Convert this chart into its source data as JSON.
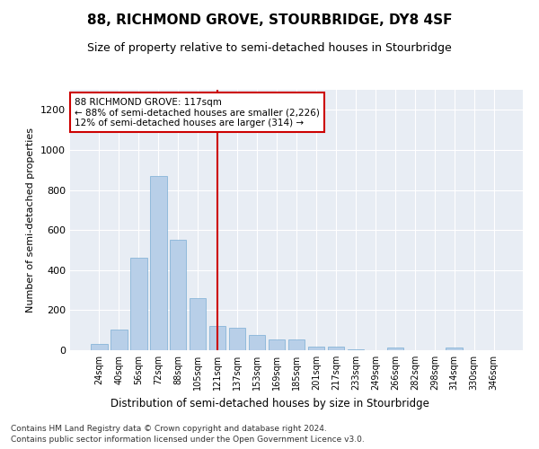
{
  "title": "88, RICHMOND GROVE, STOURBRIDGE, DY8 4SF",
  "subtitle": "Size of property relative to semi-detached houses in Stourbridge",
  "xlabel": "Distribution of semi-detached houses by size in Stourbridge",
  "ylabel": "Number of semi-detached properties",
  "categories": [
    "24sqm",
    "40sqm",
    "56sqm",
    "72sqm",
    "88sqm",
    "105sqm",
    "121sqm",
    "137sqm",
    "153sqm",
    "169sqm",
    "185sqm",
    "201sqm",
    "217sqm",
    "233sqm",
    "249sqm",
    "266sqm",
    "282sqm",
    "298sqm",
    "314sqm",
    "330sqm",
    "346sqm"
  ],
  "values": [
    30,
    105,
    460,
    870,
    550,
    260,
    120,
    110,
    75,
    55,
    55,
    20,
    20,
    5,
    0,
    15,
    0,
    0,
    15,
    0,
    0
  ],
  "bar_color": "#b8cfe8",
  "bar_edge_color": "#7aadd4",
  "vline_color": "#cc0000",
  "annotation_text": "88 RICHMOND GROVE: 117sqm\n← 88% of semi-detached houses are smaller (2,226)\n12% of semi-detached houses are larger (314) →",
  "annotation_box_color": "#ffffff",
  "annotation_box_edge": "#cc0000",
  "ylim": [
    0,
    1300
  ],
  "yticks": [
    0,
    200,
    400,
    600,
    800,
    1000,
    1200
  ],
  "background_color": "#e8edf4",
  "footnote1": "Contains HM Land Registry data © Crown copyright and database right 2024.",
  "footnote2": "Contains public sector information licensed under the Open Government Licence v3.0."
}
